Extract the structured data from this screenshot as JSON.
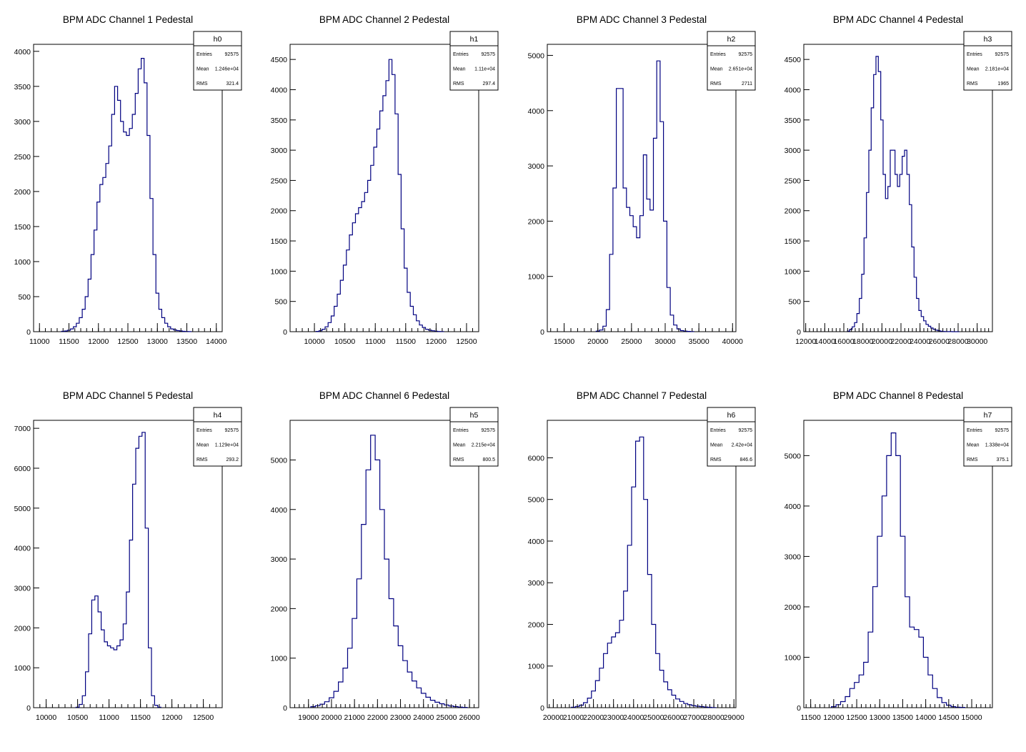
{
  "colors": {
    "line": "#000080",
    "axis": "#000000",
    "background": "#ffffff"
  },
  "stats_labels": {
    "entries": "Entries",
    "mean": "Mean",
    "rms": "RMS"
  },
  "chart_data": [
    {
      "type": "histogram",
      "title": "BPM ADC Channel 1 Pedestal",
      "stats": {
        "name": "h0",
        "entries": "92575",
        "mean": "1.246e+04",
        "rms": "321.4"
      },
      "xlim": [
        10900,
        14100
      ],
      "ylim": [
        0,
        4100
      ],
      "xticks": [
        11000,
        11500,
        12000,
        12500,
        13000,
        13500,
        14000
      ],
      "yticks": [
        0,
        500,
        1000,
        1500,
        2000,
        2500,
        3000,
        3500,
        4000
      ],
      "x": [
        11400,
        11450,
        11500,
        11550,
        11600,
        11650,
        11700,
        11750,
        11800,
        11850,
        11900,
        11950,
        12000,
        12050,
        12100,
        12150,
        12200,
        12250,
        12300,
        12350,
        12400,
        12450,
        12500,
        12550,
        12600,
        12650,
        12700,
        12750,
        12800,
        12850,
        12900,
        12950,
        13000,
        13050,
        13100,
        13150,
        13200,
        13250,
        13300,
        13350,
        13400,
        13450,
        13500,
        13550
      ],
      "y": [
        5,
        10,
        20,
        40,
        70,
        120,
        200,
        320,
        500,
        750,
        1100,
        1450,
        1850,
        2100,
        2200,
        2400,
        2650,
        3100,
        3500,
        3300,
        3000,
        2850,
        2800,
        2900,
        3100,
        3400,
        3750,
        3900,
        3550,
        2800,
        1900,
        1100,
        550,
        320,
        200,
        120,
        70,
        40,
        25,
        15,
        10,
        5,
        3,
        1
      ]
    },
    {
      "type": "histogram",
      "title": "BPM ADC Channel 2 Pedestal",
      "stats": {
        "name": "h1",
        "entries": "92575",
        "mean": "1.11e+04",
        "rms": "297.4"
      },
      "xlim": [
        9600,
        12700
      ],
      "ylim": [
        0,
        4750
      ],
      "xticks": [
        10000,
        10500,
        11000,
        11500,
        12000,
        12500
      ],
      "yticks": [
        0,
        500,
        1000,
        1500,
        2000,
        2500,
        3000,
        3500,
        4000,
        4500
      ],
      "x": [
        10050,
        10100,
        10150,
        10200,
        10250,
        10300,
        10350,
        10400,
        10450,
        10500,
        10550,
        10600,
        10650,
        10700,
        10750,
        10800,
        10850,
        10900,
        10950,
        11000,
        11050,
        11100,
        11150,
        11200,
        11250,
        11300,
        11350,
        11400,
        11450,
        11500,
        11550,
        11600,
        11650,
        11700,
        11750,
        11800,
        11850,
        11900,
        11950,
        12000,
        12050,
        12100
      ],
      "y": [
        5,
        15,
        40,
        80,
        150,
        260,
        420,
        620,
        850,
        1100,
        1350,
        1600,
        1800,
        1950,
        2050,
        2150,
        2300,
        2500,
        2750,
        3050,
        3350,
        3650,
        3900,
        4150,
        4500,
        4250,
        3600,
        2600,
        1700,
        1050,
        650,
        420,
        280,
        180,
        110,
        70,
        40,
        25,
        15,
        8,
        4,
        2
      ]
    },
    {
      "type": "histogram",
      "title": "BPM ADC Channel 3 Pedestal",
      "stats": {
        "name": "h2",
        "entries": "92575",
        "mean": "2.651e+04",
        "rms": "2711"
      },
      "xlim": [
        12500,
        40500
      ],
      "ylim": [
        0,
        5200
      ],
      "xticks": [
        15000,
        20000,
        25000,
        30000,
        35000,
        40000
      ],
      "yticks": [
        0,
        1000,
        2000,
        3000,
        4000,
        5000
      ],
      "x": [
        20000,
        20500,
        21000,
        21500,
        22000,
        22500,
        23000,
        23500,
        24000,
        24500,
        25000,
        25500,
        26000,
        26500,
        27000,
        27500,
        28000,
        28500,
        29000,
        29500,
        30000,
        30500,
        31000,
        31500,
        32000,
        32500,
        33000,
        33500,
        34000
      ],
      "y": [
        10,
        30,
        100,
        400,
        1400,
        2600,
        4400,
        4400,
        2600,
        2250,
        2100,
        1900,
        1700,
        2100,
        3200,
        2400,
        2200,
        3500,
        4900,
        3800,
        2000,
        800,
        300,
        120,
        50,
        20,
        10,
        5,
        2
      ]
    },
    {
      "type": "histogram",
      "title": "BPM ADC Channel 4 Pedestal",
      "stats": {
        "name": "h3",
        "entries": "92575",
        "mean": "2.181e+04",
        "rms": "1965"
      },
      "xlim": [
        11800,
        31600
      ],
      "ylim": [
        0,
        4750
      ],
      "xticks": [
        12000,
        14000,
        16000,
        18000,
        20000,
        22000,
        24000,
        26000,
        28000,
        30000
      ],
      "yticks": [
        0,
        500,
        1000,
        1500,
        2000,
        2500,
        3000,
        3500,
        4000,
        4500
      ],
      "x": [
        16500,
        16750,
        17000,
        17250,
        17500,
        17750,
        18000,
        18250,
        18500,
        18750,
        19000,
        19250,
        19500,
        19750,
        20000,
        20250,
        20500,
        20750,
        21000,
        21250,
        21500,
        21750,
        22000,
        22250,
        22500,
        22750,
        23000,
        23250,
        23500,
        23750,
        24000,
        24250,
        24500,
        24750,
        25000,
        25250,
        25500,
        25750,
        26000,
        26250,
        26500,
        26750,
        27000,
        27250,
        27500,
        27750,
        28000
      ],
      "y": [
        10,
        40,
        80,
        150,
        300,
        550,
        950,
        1550,
        2300,
        3000,
        3700,
        4250,
        4550,
        4300,
        3500,
        2600,
        2200,
        2400,
        3000,
        3000,
        2600,
        2400,
        2600,
        2900,
        3000,
        2600,
        2100,
        1400,
        900,
        550,
        350,
        250,
        180,
        120,
        90,
        60,
        40,
        25,
        15,
        8,
        4,
        2,
        1,
        1,
        0,
        0,
        0
      ]
    },
    {
      "type": "histogram",
      "title": "BPM ADC Channel 5 Pedestal",
      "stats": {
        "name": "h4",
        "entries": "92575",
        "mean": "1.129e+04",
        "rms": "293.2"
      },
      "xlim": [
        9800,
        12800
      ],
      "ylim": [
        0,
        7200
      ],
      "xticks": [
        10000,
        10500,
        11000,
        11500,
        12000,
        12500
      ],
      "yticks": [
        0,
        1000,
        2000,
        3000,
        4000,
        5000,
        6000,
        7000
      ],
      "x": [
        10500,
        10550,
        10600,
        10650,
        10700,
        10750,
        10800,
        10850,
        10900,
        10950,
        11000,
        11050,
        11100,
        11150,
        11200,
        11250,
        11300,
        11350,
        11400,
        11450,
        11500,
        11550,
        11600,
        11650,
        11700,
        11750,
        11800
      ],
      "y": [
        10,
        80,
        300,
        900,
        1850,
        2700,
        2800,
        2400,
        1950,
        1650,
        1550,
        1500,
        1450,
        1550,
        1700,
        2100,
        2900,
        4200,
        5600,
        6500,
        6800,
        6900,
        4500,
        1500,
        300,
        60,
        10
      ]
    },
    {
      "type": "histogram",
      "title": "BPM ADC Channel 6 Pedestal",
      "stats": {
        "name": "h5",
        "entries": "92575",
        "mean": "2.215e+04",
        "rms": "800.5"
      },
      "xlim": [
        18200,
        26400
      ],
      "ylim": [
        0,
        5800
      ],
      "xticks": [
        19000,
        20000,
        21000,
        22000,
        23000,
        24000,
        25000,
        26000
      ],
      "yticks": [
        0,
        1000,
        2000,
        3000,
        4000,
        5000
      ],
      "x": [
        19200,
        19400,
        19600,
        19800,
        20000,
        20200,
        20400,
        20600,
        20800,
        21000,
        21200,
        21400,
        21600,
        21800,
        22000,
        22200,
        22400,
        22600,
        22800,
        23000,
        23200,
        23400,
        23600,
        23800,
        24000,
        24200,
        24400,
        24600,
        24800,
        25000,
        25200,
        25400,
        25600,
        25800
      ],
      "y": [
        20,
        40,
        70,
        120,
        200,
        330,
        520,
        800,
        1200,
        1800,
        2600,
        3700,
        4800,
        5500,
        5000,
        4000,
        3000,
        2200,
        1650,
        1250,
        950,
        720,
        540,
        400,
        290,
        210,
        150,
        110,
        80,
        55,
        35,
        22,
        12,
        6
      ]
    },
    {
      "type": "histogram",
      "title": "BPM ADC Channel 7 Pedestal",
      "stats": {
        "name": "h6",
        "entries": "92575",
        "mean": "2.42e+04",
        "rms": "846.6"
      },
      "xlim": [
        19700,
        29100
      ],
      "ylim": [
        0,
        6900
      ],
      "xticks": [
        20000,
        21000,
        22000,
        23000,
        24000,
        25000,
        26000,
        27000,
        28000,
        29000
      ],
      "yticks": [
        0,
        1000,
        2000,
        3000,
        4000,
        5000,
        6000
      ],
      "x": [
        21000,
        21200,
        21400,
        21600,
        21800,
        22000,
        22200,
        22400,
        22600,
        22800,
        23000,
        23200,
        23400,
        23600,
        23800,
        24000,
        24200,
        24400,
        24600,
        24800,
        25000,
        25200,
        25400,
        25600,
        25800,
        26000,
        26200,
        26400,
        26600,
        26800,
        27000,
        27200,
        27400,
        27600,
        27800,
        28000
      ],
      "y": [
        10,
        30,
        60,
        120,
        230,
        400,
        650,
        950,
        1300,
        1550,
        1700,
        1800,
        2100,
        2800,
        3900,
        5300,
        6400,
        6500,
        5000,
        3200,
        2000,
        1300,
        900,
        620,
        430,
        300,
        210,
        150,
        100,
        70,
        50,
        35,
        25,
        15,
        8,
        4
      ]
    },
    {
      "type": "histogram",
      "title": "BPM ADC Channel 8 Pedestal",
      "stats": {
        "name": "h7",
        "entries": "92575",
        "mean": "1.338e+04",
        "rms": "375.1"
      },
      "xlim": [
        11350,
        15450
      ],
      "ylim": [
        0,
        5700
      ],
      "xticks": [
        11500,
        12000,
        12500,
        13000,
        13500,
        14000,
        14500,
        15000
      ],
      "yticks": [
        0,
        1000,
        2000,
        3000,
        4000,
        5000
      ],
      "x": [
        12000,
        12100,
        12200,
        12300,
        12400,
        12500,
        12600,
        12700,
        12800,
        12900,
        13000,
        13100,
        13200,
        13300,
        13400,
        13500,
        13600,
        13700,
        13800,
        13900,
        14000,
        14100,
        14200,
        14300,
        14400,
        14500,
        14600,
        14700,
        14800
      ],
      "y": [
        20,
        60,
        120,
        220,
        380,
        500,
        650,
        900,
        1500,
        2400,
        3400,
        4200,
        5000,
        5450,
        5000,
        3400,
        2200,
        1600,
        1550,
        1400,
        1000,
        650,
        380,
        200,
        100,
        50,
        20,
        10,
        5
      ]
    }
  ]
}
